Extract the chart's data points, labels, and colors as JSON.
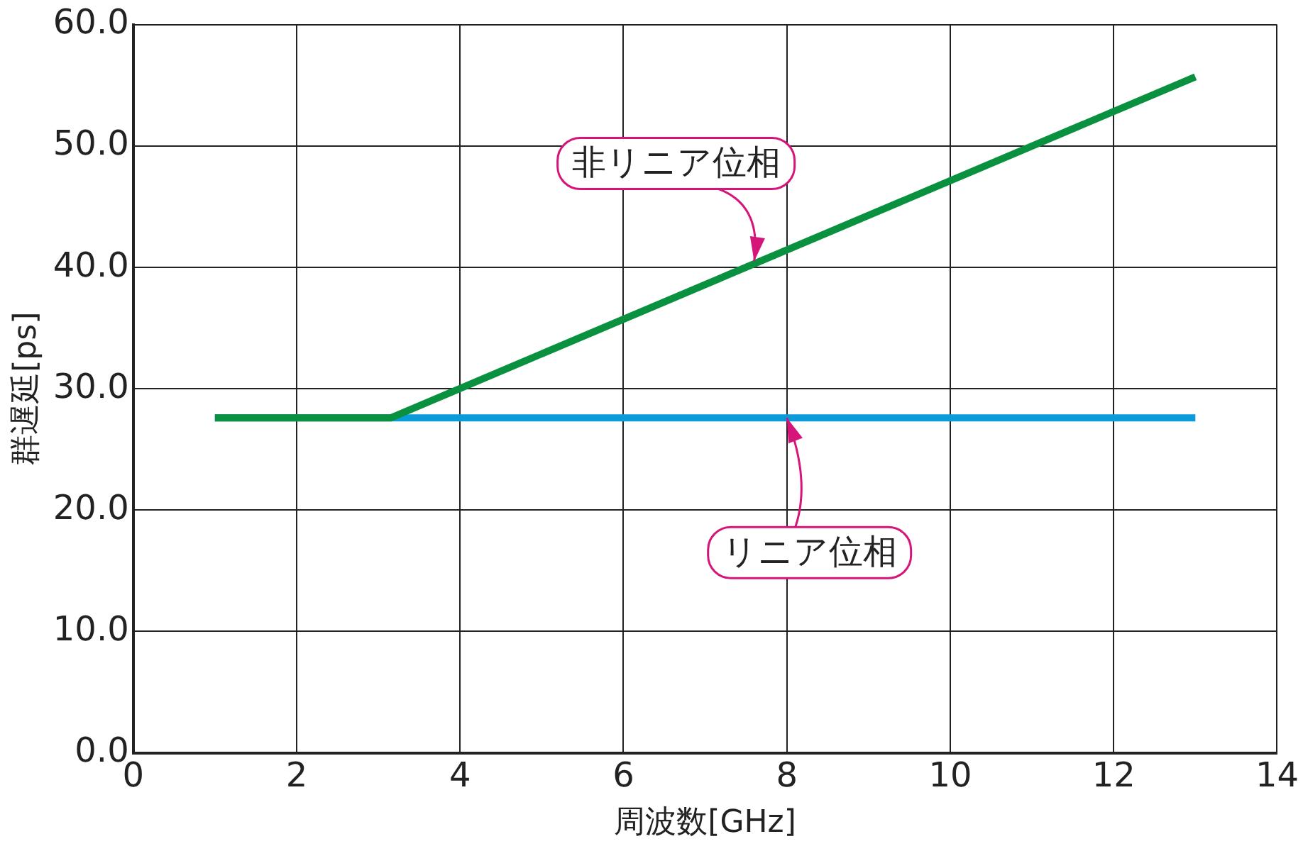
{
  "chart_data": {
    "type": "line",
    "xlabel": "周波数[GHz]",
    "ylabel": "群遅延[ps]",
    "series": [
      {
        "color": "#0a9bd8",
        "x": [
          1,
          13
        ],
        "values": [
          27.6,
          27.6
        ]
      },
      {
        "color": "#0a9140",
        "x": [
          1,
          3.15,
          13
        ],
        "values": [
          27.6,
          27.6,
          55.7
        ]
      }
    ],
    "xlim": [
      0,
      14
    ],
    "xticks": [
      0,
      2,
      4,
      6,
      8,
      10,
      12,
      14
    ],
    "ylim": [
      0,
      60
    ],
    "yticks": [
      {
        "value": 0,
        "label": "0.0"
      },
      {
        "value": 10,
        "label": "10.0"
      },
      {
        "value": 20,
        "label": "20.0"
      },
      {
        "value": 30,
        "label": "30.0"
      },
      {
        "value": 40,
        "label": "40.0"
      },
      {
        "value": 50,
        "label": "50.0"
      },
      {
        "value": 60,
        "label": "60.0"
      }
    ],
    "grid": true,
    "legend": false,
    "marker": "none",
    "line_style": "solid",
    "annotations": [
      {
        "text": "非リニア位相",
        "x": 7.6,
        "y": 40.5
      },
      {
        "text": "リニア位相",
        "x": 8,
        "y": 27.6
      }
    ]
  }
}
